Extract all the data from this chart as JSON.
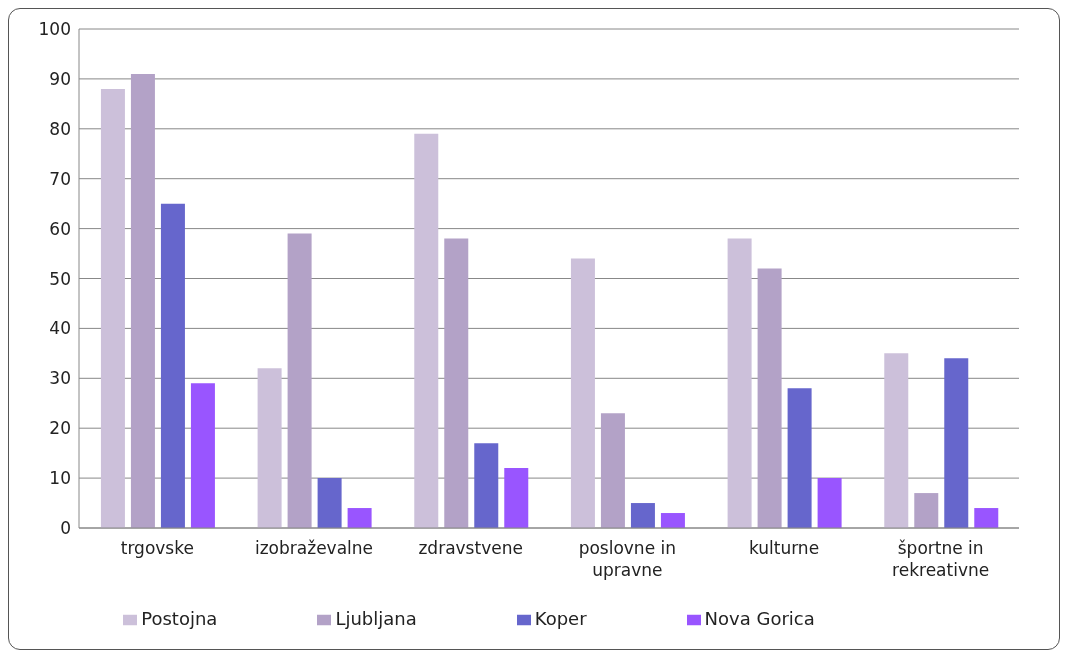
{
  "chart_data": {
    "type": "bar",
    "categories": [
      "trgovske",
      "izobraževalne",
      "zdravstvene",
      "poslovne in upravne",
      "kulturne",
      "športne in rekreativne"
    ],
    "series": [
      {
        "name": "Postojna",
        "color": "#ccc0da",
        "values": [
          88,
          32,
          79,
          54,
          58,
          35
        ]
      },
      {
        "name": "Ljubljana",
        "color": "#b3a2c7",
        "values": [
          91,
          59,
          58,
          23,
          52,
          7
        ]
      },
      {
        "name": "Koper",
        "color": "#6666cc",
        "values": [
          65,
          10,
          17,
          5,
          28,
          34
        ]
      },
      {
        "name": "Nova Gorica",
        "color": "#9955ff",
        "values": [
          29,
          4,
          12,
          3,
          10,
          4
        ]
      }
    ],
    "ylim": [
      0,
      100
    ],
    "yticks": [
      0,
      10,
      20,
      30,
      40,
      50,
      60,
      70,
      80,
      90,
      100
    ],
    "grid": "y",
    "legend": "bottom"
  }
}
